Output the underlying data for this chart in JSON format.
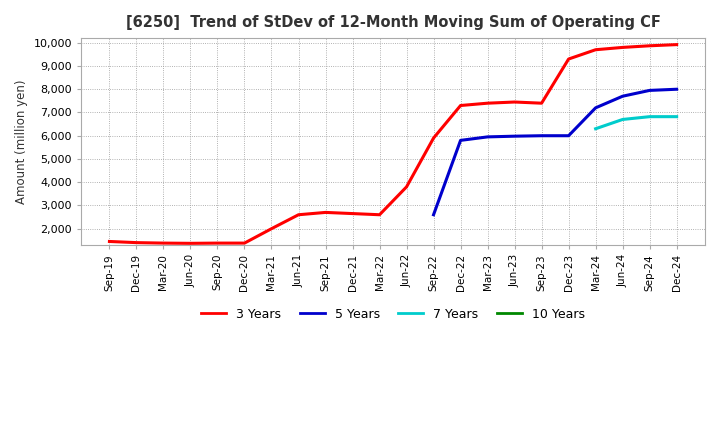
{
  "title": "[6250]  Trend of StDev of 12-Month Moving Sum of Operating CF",
  "ylabel": "Amount (million yen)",
  "background_color": "#ffffff",
  "plot_bg_color": "#ffffff",
  "ylim": [
    1300,
    10200
  ],
  "yticks": [
    2000,
    3000,
    4000,
    5000,
    6000,
    7000,
    8000,
    9000,
    10000
  ],
  "x_labels": [
    "Sep-19",
    "Dec-19",
    "Mar-20",
    "Jun-20",
    "Sep-20",
    "Dec-20",
    "Mar-21",
    "Jun-21",
    "Sep-21",
    "Dec-21",
    "Mar-22",
    "Jun-22",
    "Sep-22",
    "Dec-22",
    "Mar-23",
    "Jun-23",
    "Sep-23",
    "Dec-23",
    "Mar-24",
    "Jun-24",
    "Sep-24",
    "Dec-24"
  ],
  "series": {
    "3 Years": {
      "color": "#ff0000",
      "values": [
        1450,
        1400,
        1380,
        1370,
        1380,
        1380,
        2000,
        2600,
        2700,
        2650,
        2600,
        3800,
        5900,
        7300,
        7400,
        7450,
        7400,
        9300,
        9700,
        9800,
        9870,
        9920
      ]
    },
    "5 Years": {
      "color": "#0000cc",
      "values": [
        null,
        null,
        null,
        null,
        null,
        null,
        null,
        null,
        null,
        null,
        null,
        null,
        2600,
        5800,
        5950,
        5980,
        6000,
        6000,
        7200,
        7700,
        7950,
        8000
      ]
    },
    "7 Years": {
      "color": "#00cccc",
      "values": [
        null,
        null,
        null,
        null,
        null,
        null,
        null,
        null,
        null,
        null,
        null,
        null,
        null,
        null,
        null,
        null,
        null,
        null,
        6300,
        6700,
        6820,
        6820
      ]
    },
    "10 Years": {
      "color": "#008800",
      "values": [
        null,
        null,
        null,
        null,
        null,
        null,
        null,
        null,
        null,
        null,
        null,
        null,
        null,
        null,
        null,
        null,
        null,
        null,
        null,
        null,
        null,
        null
      ]
    }
  },
  "legend_labels": [
    "3 Years",
    "5 Years",
    "7 Years",
    "10 Years"
  ],
  "legend_colors": [
    "#ff0000",
    "#0000cc",
    "#00cccc",
    "#008800"
  ]
}
